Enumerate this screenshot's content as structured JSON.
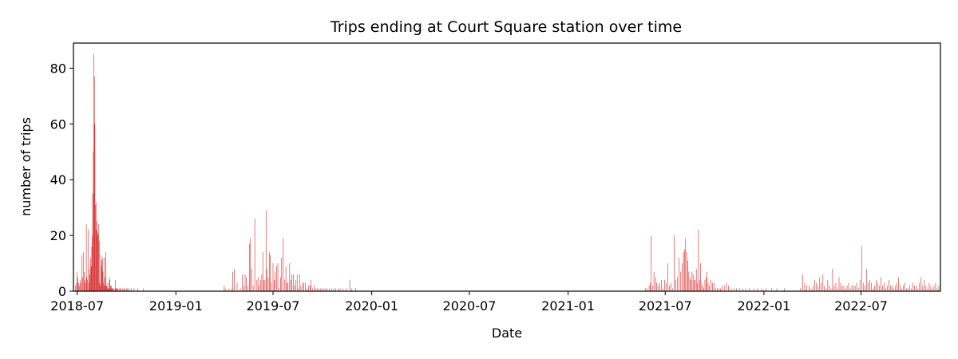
{
  "chart_data": {
    "type": "bar",
    "title": "Trips ending at Court Square station over time",
    "xlabel": "Date",
    "ylabel": "number of trips",
    "x_tick_labels": [
      "2018-07",
      "2019-01",
      "2019-07",
      "2020-01",
      "2020-07",
      "2021-01",
      "2021-07",
      "2022-01",
      "2022-07"
    ],
    "y_tick_labels": [
      "0",
      "20",
      "40",
      "60",
      "80"
    ],
    "xlim": [
      "2018-06-24",
      "2022-11-26"
    ],
    "ylim": [
      0,
      89
    ],
    "grid": false,
    "bar_color": "#d62728",
    "series": [
      {
        "x": [
          "2018-06-28",
          "2018-06-30",
          "2018-07-01",
          "2018-07-02",
          "2018-07-04",
          "2018-07-05",
          "2018-07-07",
          "2018-07-08",
          "2018-07-10",
          "2018-07-11",
          "2018-07-13",
          "2018-07-14",
          "2018-07-15",
          "2018-07-16",
          "2018-07-18",
          "2018-07-19",
          "2018-07-20",
          "2018-07-22",
          "2018-07-23",
          "2018-07-24",
          "2018-07-25",
          "2018-07-26",
          "2018-07-27",
          "2018-07-28",
          "2018-07-29",
          "2018-07-30",
          "2018-07-31",
          "2018-08-01",
          "2018-08-02",
          "2018-08-03",
          "2018-08-04",
          "2018-08-05",
          "2018-08-06",
          "2018-08-07",
          "2018-08-08",
          "2018-08-09",
          "2018-08-10",
          "2018-08-11",
          "2018-08-12",
          "2018-08-13",
          "2018-08-14",
          "2018-08-15",
          "2018-08-16",
          "2018-08-17",
          "2018-08-18",
          "2018-08-19",
          "2018-08-20",
          "2018-08-21",
          "2018-08-22",
          "2018-08-23",
          "2018-08-24",
          "2018-08-25",
          "2018-08-26",
          "2018-08-27",
          "2018-08-28",
          "2018-08-29",
          "2018-08-30",
          "2018-08-31",
          "2018-09-01",
          "2018-09-02",
          "2018-09-03",
          "2018-09-04",
          "2018-09-05",
          "2018-09-06",
          "2018-09-08",
          "2018-09-10",
          "2018-09-11",
          "2018-09-12",
          "2018-09-13",
          "2018-09-15",
          "2018-09-17",
          "2018-09-19",
          "2018-09-21",
          "2018-09-24",
          "2018-09-26",
          "2018-09-28",
          "2018-10-01",
          "2018-10-03",
          "2018-10-06",
          "2018-10-10",
          "2018-10-15",
          "2018-10-22",
          "2018-11-01",
          "2019-04-01",
          "2019-04-04",
          "2019-04-10",
          "2019-04-15",
          "2019-04-17",
          "2019-04-20",
          "2019-04-25",
          "2019-05-01",
          "2019-05-05",
          "2019-05-08",
          "2019-05-10",
          "2019-05-12",
          "2019-05-15",
          "2019-05-18",
          "2019-05-20",
          "2019-05-22",
          "2019-05-25",
          "2019-05-28",
          "2019-06-01",
          "2019-06-03",
          "2019-06-05",
          "2019-06-08",
          "2019-06-10",
          "2019-06-12",
          "2019-06-14",
          "2019-06-16",
          "2019-06-18",
          "2019-06-20",
          "2019-06-22",
          "2019-06-24",
          "2019-06-26",
          "2019-06-28",
          "2019-07-01",
          "2019-07-03",
          "2019-07-05",
          "2019-07-08",
          "2019-07-10",
          "2019-07-12",
          "2019-07-15",
          "2019-07-17",
          "2019-07-20",
          "2019-07-23",
          "2019-07-25",
          "2019-07-27",
          "2019-07-29",
          "2019-08-01",
          "2019-08-03",
          "2019-08-05",
          "2019-08-08",
          "2019-08-10",
          "2019-08-12",
          "2019-08-15",
          "2019-08-17",
          "2019-08-20",
          "2019-08-22",
          "2019-08-25",
          "2019-08-27",
          "2019-08-30",
          "2019-09-02",
          "2019-09-05",
          "2019-09-08",
          "2019-09-10",
          "2019-09-13",
          "2019-09-16",
          "2019-09-19",
          "2019-09-22",
          "2019-09-25",
          "2019-09-28",
          "2019-10-01",
          "2019-10-04",
          "2019-10-07",
          "2019-10-10",
          "2019-10-14",
          "2019-10-18",
          "2019-10-22",
          "2019-10-26",
          "2019-10-30",
          "2019-11-03",
          "2019-11-08",
          "2019-11-14",
          "2019-11-21",
          "2019-11-25",
          "2019-12-02",
          "2021-05-25",
          "2021-05-28",
          "2021-06-01",
          "2021-06-03",
          "2021-06-05",
          "2021-06-08",
          "2021-06-10",
          "2021-06-13",
          "2021-06-15",
          "2021-06-18",
          "2021-06-21",
          "2021-06-24",
          "2021-06-27",
          "2021-06-30",
          "2021-07-03",
          "2021-07-06",
          "2021-07-09",
          "2021-07-12",
          "2021-07-15",
          "2021-07-18",
          "2021-07-21",
          "2021-07-24",
          "2021-07-27",
          "2021-07-30",
          "2021-08-02",
          "2021-08-04",
          "2021-08-06",
          "2021-08-08",
          "2021-08-10",
          "2021-08-12",
          "2021-08-14",
          "2021-08-16",
          "2021-08-18",
          "2021-08-20",
          "2021-08-22",
          "2021-08-24",
          "2021-08-26",
          "2021-08-28",
          "2021-08-30",
          "2021-09-01",
          "2021-09-03",
          "2021-09-05",
          "2021-09-07",
          "2021-09-09",
          "2021-09-11",
          "2021-09-13",
          "2021-09-15",
          "2021-09-17",
          "2021-09-19",
          "2021-09-21",
          "2021-09-24",
          "2021-09-27",
          "2021-09-30",
          "2021-10-03",
          "2021-10-06",
          "2021-10-09",
          "2021-10-12",
          "2021-10-15",
          "2021-10-19",
          "2021-10-23",
          "2021-10-27",
          "2021-11-01",
          "2021-11-06",
          "2021-11-11",
          "2021-11-17",
          "2021-11-23",
          "2021-11-28",
          "2021-12-05",
          "2021-12-13",
          "2021-12-20",
          "2021-12-28",
          "2022-01-05",
          "2022-01-15",
          "2022-01-25",
          "2022-02-08",
          "2022-03-10",
          "2022-03-14",
          "2022-03-18",
          "2022-03-22",
          "2022-03-26",
          "2022-03-30",
          "2022-04-03",
          "2022-04-06",
          "2022-04-09",
          "2022-04-12",
          "2022-04-15",
          "2022-04-18",
          "2022-04-21",
          "2022-04-24",
          "2022-04-27",
          "2022-04-30",
          "2022-05-03",
          "2022-05-06",
          "2022-05-09",
          "2022-05-12",
          "2022-05-15",
          "2022-05-18",
          "2022-05-21",
          "2022-05-24",
          "2022-05-27",
          "2022-05-30",
          "2022-06-02",
          "2022-06-05",
          "2022-06-08",
          "2022-06-11",
          "2022-06-14",
          "2022-06-17",
          "2022-06-20",
          "2022-06-23",
          "2022-06-26",
          "2022-06-29",
          "2022-07-02",
          "2022-07-05",
          "2022-07-08",
          "2022-07-11",
          "2022-07-14",
          "2022-07-17",
          "2022-07-20",
          "2022-07-23",
          "2022-07-26",
          "2022-07-29",
          "2022-08-01",
          "2022-08-04",
          "2022-08-07",
          "2022-08-10",
          "2022-08-13",
          "2022-08-16",
          "2022-08-19",
          "2022-08-22",
          "2022-08-25",
          "2022-08-28",
          "2022-08-31",
          "2022-09-03",
          "2022-09-06",
          "2022-09-09",
          "2022-09-12",
          "2022-09-15",
          "2022-09-18",
          "2022-09-21",
          "2022-09-24",
          "2022-09-27",
          "2022-09-30",
          "2022-10-03",
          "2022-10-06",
          "2022-10-09",
          "2022-10-12",
          "2022-10-15",
          "2022-10-18",
          "2022-10-21",
          "2022-10-24",
          "2022-10-27",
          "2022-10-30",
          "2022-11-02",
          "2022-11-05",
          "2022-11-08",
          "2022-11-11",
          "2022-11-14",
          "2022-11-17",
          "2022-11-20",
          "2022-11-23"
        ],
        "values": [
          2,
          3,
          7,
          5,
          3,
          2,
          4,
          3,
          13,
          5,
          14,
          7,
          4,
          3,
          24,
          5,
          4,
          22,
          3,
          8,
          6,
          12,
          9,
          16,
          20,
          35,
          50,
          85,
          77,
          60,
          31,
          32,
          22,
          25,
          21,
          20,
          24,
          18,
          3,
          2,
          13,
          9,
          11,
          12,
          7,
          3,
          2,
          12,
          5,
          14,
          2,
          2,
          1,
          3,
          1,
          1,
          5,
          4,
          2,
          1,
          2,
          1,
          1,
          1,
          1,
          4,
          1,
          1,
          1,
          1,
          1,
          1,
          1,
          1,
          1,
          1,
          1,
          1,
          1,
          1,
          1,
          1,
          1,
          2,
          1,
          1,
          1,
          7,
          8,
          3,
          1,
          6,
          2,
          6,
          5,
          2,
          17,
          19,
          8,
          2,
          26,
          4,
          5,
          2,
          4,
          6,
          14,
          4,
          4,
          29,
          8,
          5,
          14,
          13,
          3,
          10,
          4,
          7,
          9,
          10,
          1,
          5,
          12,
          19,
          4,
          9,
          3,
          3,
          10,
          4,
          6,
          6,
          2,
          4,
          6,
          1,
          6,
          2,
          3,
          3,
          3,
          1,
          2,
          2,
          4,
          1,
          2,
          1,
          1,
          1,
          1,
          1,
          1,
          1,
          1,
          1,
          1,
          1,
          1,
          1,
          1,
          1,
          1,
          4,
          1,
          1,
          1,
          1,
          2,
          3,
          20,
          2,
          7,
          5,
          3,
          2,
          3,
          4,
          1,
          4,
          3,
          10,
          2,
          3,
          1,
          20,
          4,
          5,
          12,
          7,
          10,
          14,
          15,
          19,
          14,
          11,
          7,
          5,
          4,
          7,
          6,
          4,
          4,
          8,
          3,
          22,
          4,
          10,
          3,
          2,
          1,
          4,
          5,
          7,
          3,
          2,
          4,
          3,
          3,
          1,
          1,
          1,
          1,
          2,
          2,
          3,
          2,
          1,
          1,
          1,
          1,
          1,
          1,
          1,
          1,
          1,
          1,
          1,
          1,
          1,
          1,
          1,
          6,
          3,
          2,
          2,
          1,
          2,
          4,
          3,
          2,
          5,
          3,
          6,
          2,
          1,
          4,
          2,
          1,
          8,
          2,
          3,
          1,
          5,
          3,
          2,
          2,
          1,
          2,
          3,
          1,
          2,
          2,
          2,
          3,
          1,
          4,
          16,
          3,
          2,
          8,
          3,
          4,
          3,
          1,
          2,
          4,
          3,
          2,
          5,
          2,
          3,
          1,
          2,
          4,
          2,
          2,
          1,
          2,
          3,
          5,
          2,
          1,
          2,
          3,
          1,
          1,
          2,
          1,
          3,
          2,
          2,
          1,
          3,
          5,
          2,
          4,
          2,
          1,
          3,
          2,
          1,
          2,
          3,
          1,
          2
        ]
      }
    ]
  }
}
